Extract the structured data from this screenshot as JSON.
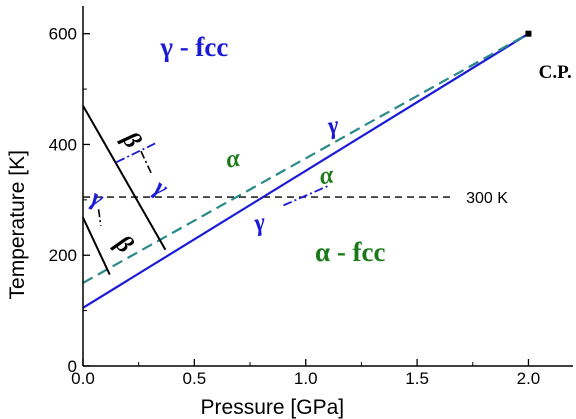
{
  "chart_data": {
    "type": "line",
    "xlabel": "Pressure [GPa]",
    "ylabel": "Temperature [K]",
    "xlim": [
      0.0,
      2.2
    ],
    "ylim": [
      0,
      650
    ],
    "x_ticks": [
      0.0,
      0.5,
      1.0,
      1.5,
      2.0
    ],
    "x_tick_labels": [
      "0.0",
      "0.5",
      "1.0",
      "1.5",
      "2.0"
    ],
    "y_ticks": [
      0,
      200,
      400,
      600
    ],
    "y_tick_labels": [
      "0",
      "200",
      "400",
      "600"
    ],
    "grid": false,
    "colors": {
      "blue": "#1a1ad8",
      "green": "#1a7a1a",
      "teal": "#2a8a8a",
      "black": "#000000"
    },
    "series": [
      {
        "style": "blue-solid",
        "x": [
          0.0,
          2.0
        ],
        "y": [
          105,
          600
        ]
      },
      {
        "style": "teal-dashed",
        "x": [
          0.0,
          2.0
        ],
        "y": [
          150,
          600
        ]
      },
      {
        "style": "black-solid",
        "x": [
          0.0,
          0.37
        ],
        "y": [
          470,
          210
        ]
      },
      {
        "style": "black-solid",
        "x": [
          0.0,
          0.12
        ],
        "y": [
          268,
          165
        ]
      }
    ],
    "reference_line": {
      "y": 305,
      "x": [
        0.0,
        1.65
      ],
      "label": "300 K"
    },
    "connectors": [
      {
        "style": "blue-dashdot",
        "x": [
          0.15,
          0.33
        ],
        "y": [
          368,
          403
        ]
      },
      {
        "style": "blue-dashdot",
        "x": [
          0.9,
          1.1
        ],
        "y": [
          290,
          325
        ]
      },
      {
        "style": "black-dashdot",
        "x": [
          0.26,
          0.31
        ],
        "y": [
          388,
          345
        ]
      },
      {
        "style": "black-dashdot",
        "x": [
          0.07,
          0.08
        ],
        "y": [
          283,
          253
        ]
      }
    ],
    "annotations": [
      {
        "id": "gamma-fcc",
        "text": "γ - fcc",
        "x": 0.5,
        "y": 560,
        "color": "blue",
        "kind": "phase"
      },
      {
        "id": "alpha-fcc",
        "text": "α - fcc",
        "x": 1.2,
        "y": 190,
        "color": "green",
        "kind": "phase"
      },
      {
        "id": "cp",
        "text": "C.P.",
        "x": 2.12,
        "y": 520,
        "color": "black",
        "kind": "cp"
      },
      {
        "id": "alpha-upper",
        "text": "α",
        "x": 0.68,
        "y": 360,
        "color": "green",
        "kind": "greek"
      },
      {
        "id": "gamma-upper",
        "text": "γ",
        "x": 1.13,
        "y": 420,
        "color": "blue",
        "kind": "greek"
      },
      {
        "id": "alpha-lower",
        "text": "α",
        "x": 1.1,
        "y": 330,
        "color": "green",
        "kind": "greek"
      },
      {
        "id": "gamma-lower",
        "text": "γ",
        "x": 0.8,
        "y": 245,
        "color": "blue",
        "kind": "greek"
      },
      {
        "id": "beta-upper",
        "text": "β",
        "x": 0.19,
        "y": 400,
        "color": "black",
        "kind": "greek"
      },
      {
        "id": "gamma-beta-upper",
        "text": "γ",
        "x": 0.33,
        "y": 310,
        "color": "blue",
        "kind": "greek"
      },
      {
        "id": "gamma-left",
        "text": "γ",
        "x": 0.05,
        "y": 290,
        "color": "blue",
        "kind": "greek"
      },
      {
        "id": "beta-lower",
        "text": "β",
        "x": 0.16,
        "y": 210,
        "color": "black",
        "kind": "greek"
      }
    ],
    "critical_point": {
      "x": 2.0,
      "y": 600
    }
  }
}
